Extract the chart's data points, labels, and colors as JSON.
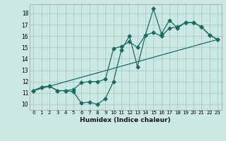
{
  "title": "",
  "xlabel": "Humidex (Indice chaleur)",
  "bg_color": "#cce8e4",
  "grid_color": "#aacfca",
  "line_color": "#1a6b60",
  "xlim": [
    -0.5,
    23.5
  ],
  "ylim": [
    9.5,
    18.8
  ],
  "xticks": [
    0,
    1,
    2,
    3,
    4,
    5,
    6,
    7,
    8,
    9,
    10,
    11,
    12,
    13,
    14,
    15,
    16,
    17,
    18,
    19,
    20,
    21,
    22,
    23
  ],
  "yticks": [
    10,
    11,
    12,
    13,
    14,
    15,
    16,
    17,
    18
  ],
  "series1_x": [
    0,
    1,
    2,
    3,
    4,
    5,
    6,
    7,
    8,
    9,
    10,
    11,
    12,
    13,
    14,
    15,
    16,
    17,
    18,
    19,
    20,
    21,
    22,
    23
  ],
  "series1_y": [
    11.2,
    11.5,
    11.6,
    11.2,
    11.2,
    11.1,
    10.1,
    10.2,
    10.0,
    10.5,
    12.0,
    14.8,
    16.0,
    13.3,
    16.1,
    18.4,
    16.2,
    17.4,
    16.7,
    17.2,
    17.2,
    16.8,
    16.1,
    15.7
  ],
  "series2_x": [
    0,
    1,
    2,
    3,
    4,
    5,
    6,
    7,
    8,
    9,
    10,
    11,
    12,
    13,
    14,
    15,
    16,
    17,
    18,
    19,
    20,
    21,
    22,
    23
  ],
  "series2_y": [
    11.2,
    11.5,
    11.6,
    11.2,
    11.2,
    11.3,
    11.9,
    12.0,
    12.0,
    12.2,
    14.9,
    15.1,
    15.5,
    15.0,
    16.1,
    16.3,
    16.0,
    16.7,
    16.8,
    17.2,
    17.2,
    16.8,
    16.1,
    15.7
  ],
  "series3_x": [
    0,
    23
  ],
  "series3_y": [
    11.2,
    15.7
  ]
}
